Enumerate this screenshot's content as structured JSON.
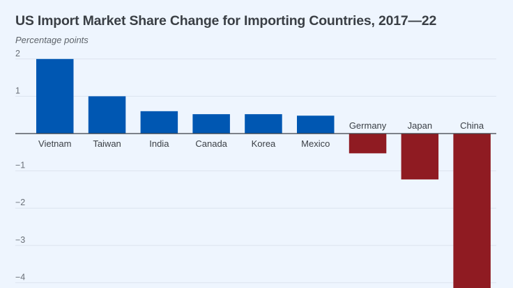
{
  "chart_data": {
    "type": "bar",
    "title": "US Import Market Share Change for Importing Countries, 2017—22",
    "subtitle": "Percentage points",
    "xlabel": "",
    "ylabel": "Percentage points",
    "categories": [
      "Vietnam",
      "Taiwan",
      "India",
      "Canada",
      "Korea",
      "Mexico",
      "Germany",
      "Japan",
      "China"
    ],
    "values": [
      2.0,
      1.0,
      0.6,
      0.52,
      0.52,
      0.48,
      -0.53,
      -1.23,
      -4.5
    ],
    "ylim": [
      -4.05,
      2.2
    ],
    "yticks": [
      2,
      1,
      -1,
      -2,
      -3,
      -4
    ],
    "ytick_labels": [
      "2",
      "1",
      "−1",
      "−2",
      "−3",
      "−4"
    ],
    "grid": true,
    "legend": "none",
    "colors": {
      "positive": "#0057b2",
      "negative": "#8f1b22",
      "grid": "#dbe3ee",
      "axis": "#3a3f45"
    }
  }
}
